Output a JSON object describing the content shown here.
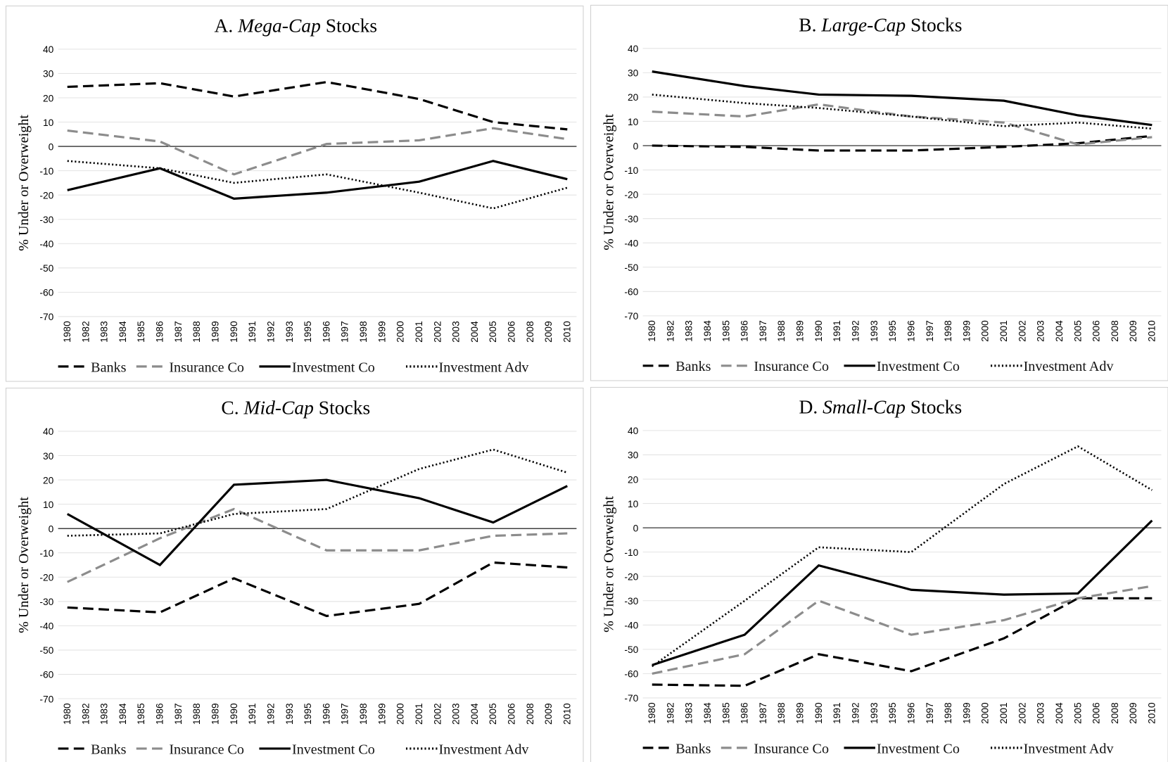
{
  "chart_data": [
    {
      "type": "line",
      "title": "A. Mega-Cap Stocks",
      "title_italic": "Mega-Cap",
      "ylabel": "% Under or Overweight",
      "categories": [
        "1980",
        "1982",
        "1983",
        "1984",
        "1985",
        "1986",
        "1987",
        "1988",
        "1989",
        "1990",
        "1991",
        "1992",
        "1993",
        "1995",
        "1996",
        "1997",
        "1998",
        "1999",
        "2000",
        "2001",
        "2002",
        "2003",
        "2004",
        "2005",
        "2006",
        "2008",
        "2009",
        "2010"
      ],
      "ylim": [
        -70,
        40
      ],
      "yticks": [
        -70,
        -60,
        -50,
        -40,
        -30,
        -20,
        -10,
        0,
        10,
        20,
        30,
        40
      ],
      "grid": true,
      "span_gaps": true,
      "series": [
        {
          "name": "Banks",
          "color": "#000000",
          "style": "dashed",
          "values": [
            24.5,
            null,
            null,
            null,
            null,
            26,
            null,
            null,
            null,
            20.5,
            null,
            null,
            null,
            null,
            26.5,
            null,
            null,
            null,
            null,
            19.5,
            null,
            null,
            null,
            10,
            null,
            null,
            null,
            7
          ]
        },
        {
          "name": "Insurance Co",
          "color": "#8c8c8c",
          "style": "dashed",
          "values": [
            6.5,
            null,
            null,
            null,
            null,
            2,
            null,
            null,
            null,
            -11.5,
            null,
            null,
            null,
            null,
            1,
            null,
            null,
            null,
            null,
            2.5,
            null,
            null,
            null,
            7.5,
            null,
            null,
            null,
            3
          ]
        },
        {
          "name": "Investment Co",
          "color": "#000000",
          "style": "solid",
          "values": [
            -18,
            null,
            null,
            null,
            null,
            -9,
            null,
            null,
            null,
            -21.5,
            null,
            null,
            null,
            null,
            -19,
            null,
            null,
            null,
            null,
            -14.5,
            null,
            null,
            null,
            -6,
            null,
            null,
            null,
            -13.5
          ]
        },
        {
          "name": "Investment Adv",
          "color": "#000000",
          "style": "dotted",
          "values": [
            -6,
            null,
            null,
            null,
            null,
            -9,
            null,
            null,
            null,
            -15,
            null,
            null,
            null,
            null,
            -11.5,
            null,
            null,
            null,
            null,
            -19,
            null,
            null,
            null,
            -25.5,
            null,
            null,
            null,
            -17
          ]
        }
      ]
    },
    {
      "type": "line",
      "title": "B. Large-Cap Stocks",
      "title_italic": "Large-Cap",
      "ylabel": "% Under or Overweight",
      "categories": [
        "1980",
        "1982",
        "1983",
        "1984",
        "1985",
        "1986",
        "1987",
        "1988",
        "1989",
        "1990",
        "1991",
        "1992",
        "1993",
        "1995",
        "1996",
        "1997",
        "1998",
        "1999",
        "2000",
        "2001",
        "2002",
        "2003",
        "2004",
        "2005",
        "2006",
        "2008",
        "2009",
        "2010"
      ],
      "ylim": [
        -70,
        40
      ],
      "yticks": [
        -70,
        -60,
        -50,
        -40,
        -30,
        -20,
        -10,
        0,
        10,
        20,
        30,
        40
      ],
      "grid": true,
      "span_gaps": true,
      "series": [
        {
          "name": "Banks",
          "color": "#000000",
          "style": "dashed",
          "values": [
            0,
            null,
            null,
            null,
            null,
            -0.5,
            null,
            null,
            null,
            -2,
            null,
            null,
            null,
            null,
            -2,
            null,
            null,
            null,
            null,
            -0.5,
            null,
            null,
            null,
            1,
            null,
            null,
            null,
            4
          ]
        },
        {
          "name": "Insurance Co",
          "color": "#8c8c8c",
          "style": "dashed",
          "values": [
            14,
            null,
            null,
            null,
            null,
            12,
            null,
            null,
            null,
            17,
            null,
            null,
            null,
            null,
            12,
            null,
            null,
            null,
            null,
            9.5,
            null,
            null,
            null,
            0.5,
            null,
            null,
            null,
            3.5
          ]
        },
        {
          "name": "Investment Co",
          "color": "#000000",
          "style": "solid",
          "values": [
            30.5,
            null,
            null,
            null,
            null,
            24.5,
            null,
            null,
            null,
            21,
            null,
            null,
            null,
            null,
            20.5,
            null,
            null,
            null,
            null,
            18.5,
            null,
            null,
            null,
            12.5,
            null,
            null,
            null,
            8.5
          ]
        },
        {
          "name": "Investment Adv",
          "color": "#000000",
          "style": "dotted",
          "values": [
            21,
            null,
            null,
            null,
            null,
            17.5,
            null,
            null,
            null,
            15.5,
            null,
            null,
            null,
            null,
            12,
            null,
            null,
            null,
            null,
            8,
            null,
            null,
            null,
            9.5,
            null,
            null,
            null,
            7
          ]
        }
      ]
    },
    {
      "type": "line",
      "title": "C. Mid-Cap Stocks",
      "title_italic": "Mid-Cap",
      "ylabel": "% Under or Overweight",
      "categories": [
        "1980",
        "1982",
        "1983",
        "1984",
        "1985",
        "1986",
        "1987",
        "1988",
        "1989",
        "1990",
        "1991",
        "1992",
        "1993",
        "1995",
        "1996",
        "1997",
        "1998",
        "1999",
        "2000",
        "2001",
        "2002",
        "2003",
        "2004",
        "2005",
        "2006",
        "2008",
        "2009",
        "2010"
      ],
      "ylim": [
        -70,
        40
      ],
      "yticks": [
        -70,
        -60,
        -50,
        -40,
        -30,
        -20,
        -10,
        0,
        10,
        20,
        30,
        40
      ],
      "grid": true,
      "span_gaps": true,
      "series": [
        {
          "name": "Banks",
          "color": "#000000",
          "style": "dashed",
          "values": [
            -32.5,
            null,
            null,
            null,
            null,
            -34.5,
            null,
            null,
            null,
            -20.5,
            null,
            null,
            null,
            null,
            -36,
            null,
            null,
            null,
            null,
            -31,
            null,
            null,
            null,
            -14,
            null,
            null,
            null,
            -16
          ]
        },
        {
          "name": "Insurance Co",
          "color": "#8c8c8c",
          "style": "dashed",
          "values": [
            -22,
            null,
            null,
            null,
            null,
            -4,
            null,
            null,
            null,
            8,
            null,
            null,
            null,
            null,
            -9,
            null,
            null,
            null,
            null,
            -9,
            null,
            null,
            null,
            -3,
            null,
            null,
            null,
            -2
          ]
        },
        {
          "name": "Investment Co",
          "color": "#000000",
          "style": "solid",
          "values": [
            6,
            null,
            null,
            null,
            null,
            -15,
            null,
            null,
            null,
            18,
            null,
            null,
            null,
            null,
            20,
            null,
            null,
            null,
            null,
            12.5,
            null,
            null,
            null,
            2.5,
            null,
            null,
            null,
            17.5
          ]
        },
        {
          "name": "Investment Adv",
          "color": "#000000",
          "style": "dotted",
          "values": [
            -3,
            null,
            null,
            null,
            null,
            -2,
            null,
            null,
            null,
            6,
            null,
            null,
            null,
            null,
            8,
            null,
            null,
            null,
            null,
            24.5,
            null,
            null,
            null,
            32.5,
            null,
            null,
            null,
            23
          ]
        }
      ]
    },
    {
      "type": "line",
      "title": "D. Small-Cap Stocks",
      "title_italic": "Small-Cap",
      "ylabel": "% Under or Overweight",
      "categories": [
        "1980",
        "1982",
        "1983",
        "1984",
        "1985",
        "1986",
        "1987",
        "1988",
        "1989",
        "1990",
        "1991",
        "1992",
        "1993",
        "1995",
        "1996",
        "1997",
        "1998",
        "1999",
        "2000",
        "2001",
        "2002",
        "2003",
        "2004",
        "2005",
        "2006",
        "2008",
        "2009",
        "2010"
      ],
      "ylim": [
        -70,
        40
      ],
      "yticks": [
        -70,
        -60,
        -50,
        -40,
        -30,
        -20,
        -10,
        0,
        10,
        20,
        30,
        40
      ],
      "grid": true,
      "span_gaps": true,
      "series": [
        {
          "name": "Banks",
          "color": "#000000",
          "style": "dashed",
          "values": [
            -64.5,
            null,
            null,
            null,
            null,
            -65,
            null,
            null,
            null,
            -52,
            null,
            null,
            null,
            null,
            -59,
            null,
            null,
            null,
            null,
            -45.5,
            null,
            null,
            null,
            -29,
            null,
            null,
            null,
            -29
          ]
        },
        {
          "name": "Insurance Co",
          "color": "#8c8c8c",
          "style": "dashed",
          "values": [
            -60,
            null,
            null,
            null,
            null,
            -52,
            null,
            null,
            null,
            -30,
            null,
            null,
            null,
            null,
            -44,
            null,
            null,
            null,
            null,
            -38,
            null,
            null,
            null,
            -29,
            null,
            null,
            null,
            -24
          ]
        },
        {
          "name": "Investment Co",
          "color": "#000000",
          "style": "solid",
          "values": [
            -56.5,
            null,
            null,
            null,
            null,
            -44,
            null,
            null,
            null,
            -15.5,
            null,
            null,
            null,
            null,
            -25.5,
            null,
            null,
            null,
            null,
            -27.5,
            null,
            null,
            null,
            -27,
            null,
            null,
            null,
            3
          ]
        },
        {
          "name": "Investment Adv",
          "color": "#000000",
          "style": "dotted",
          "values": [
            -57,
            null,
            null,
            null,
            null,
            -30,
            null,
            null,
            null,
            -8,
            null,
            null,
            null,
            null,
            -10,
            null,
            null,
            null,
            null,
            18,
            null,
            null,
            null,
            33.5,
            null,
            null,
            null,
            15.5
          ]
        }
      ]
    }
  ]
}
